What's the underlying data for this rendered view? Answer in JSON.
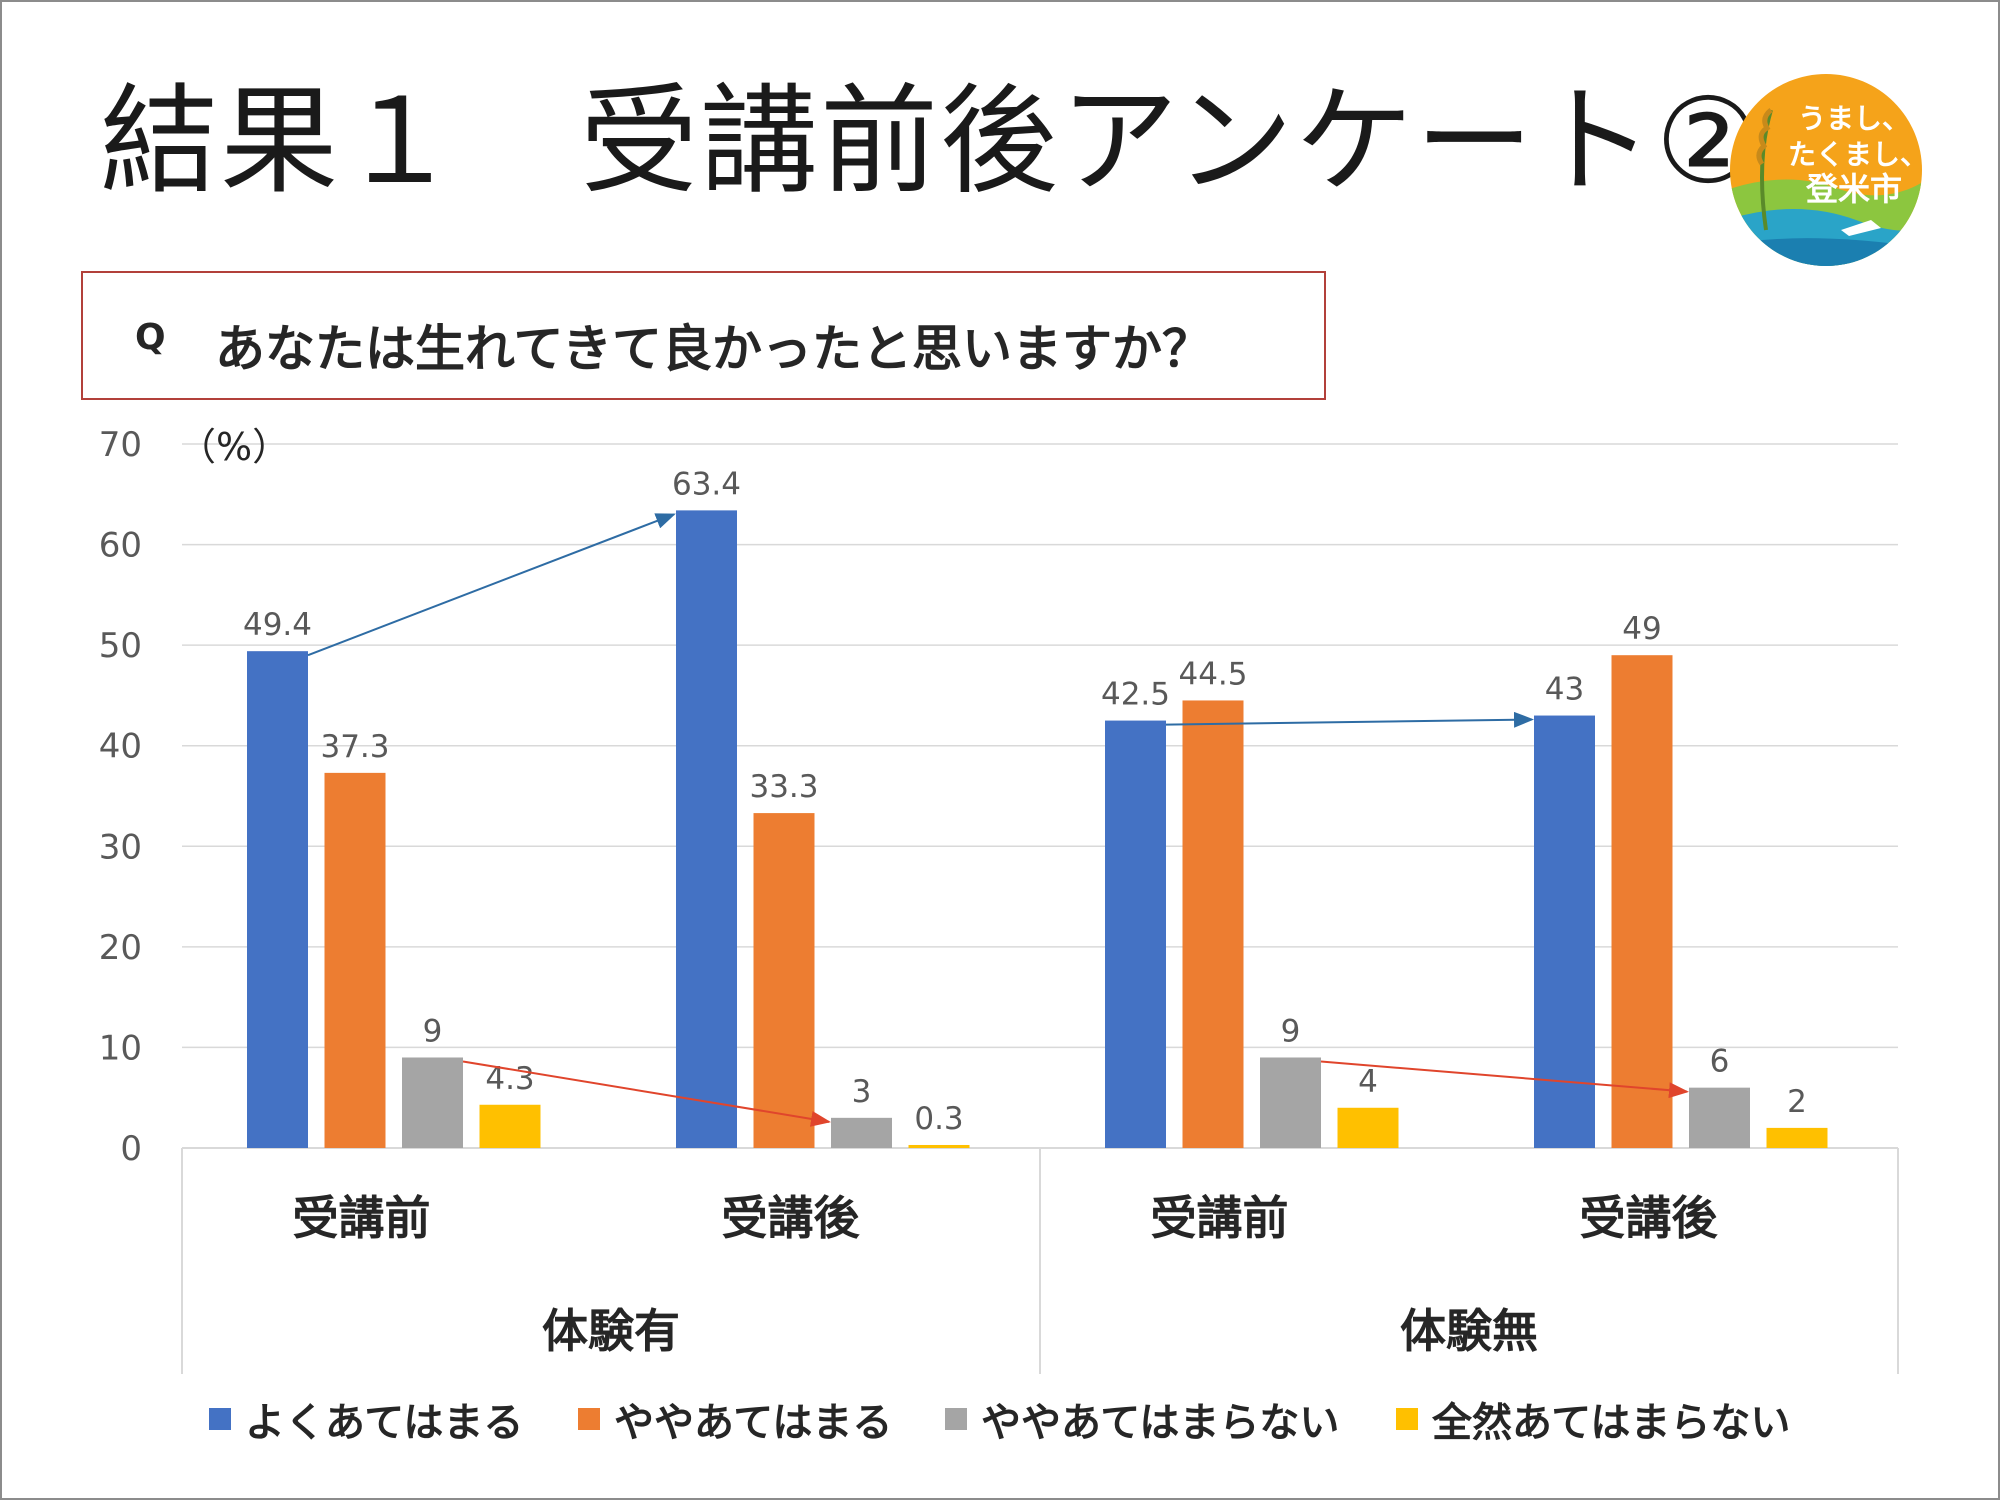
{
  "slide": {
    "title": "結果１　受講前後アンケート②",
    "question_prefix": "Q",
    "question": "あなたは生れてきて良かったと思いますか？",
    "logo_text": [
      "うまし、",
      "たくまし、",
      "登米市"
    ]
  },
  "colors": {
    "blue": "#4472c4",
    "orange": "#ed7d31",
    "gray": "#a5a5a5",
    "yellow": "#ffc000",
    "arrow_blue": "#2e6ca4",
    "arrow_red": "#e0452c",
    "border": "#b2403a"
  },
  "chart_data": {
    "type": "bar",
    "ylabel": "（%）",
    "ylim": [
      0,
      70
    ],
    "yticks": [
      0,
      10,
      20,
      30,
      40,
      50,
      60,
      70
    ],
    "grid": true,
    "groups": [
      "体験有",
      "体験無"
    ],
    "categories": [
      "受講前",
      "受講後",
      "受講前",
      "受講後"
    ],
    "category_group": [
      "体験有",
      "体験有",
      "体験無",
      "体験無"
    ],
    "series": [
      {
        "name": "よくあてはまる",
        "values": [
          49.4,
          63.4,
          42.5,
          43
        ],
        "labels": [
          "49.4",
          "63.4",
          "42.5",
          "43"
        ]
      },
      {
        "name": "ややあてはまる",
        "values": [
          37.3,
          33.3,
          44.5,
          49
        ],
        "labels": [
          "37.3",
          "33.3",
          "44.5",
          "49"
        ]
      },
      {
        "name": "ややあてはまらない",
        "values": [
          9,
          3,
          9,
          6
        ],
        "labels": [
          "9",
          "3",
          "9",
          "6"
        ]
      },
      {
        "name": "全然あてはまらない",
        "values": [
          4.3,
          0.3,
          4,
          2
        ],
        "labels": [
          "4.3",
          "0.3",
          "4",
          "2"
        ]
      }
    ],
    "legend_position": "bottom",
    "annotations": [
      {
        "type": "arrow",
        "color": "blue",
        "from": {
          "category": 0,
          "series": 0
        },
        "to": {
          "category": 1,
          "series": 0
        }
      },
      {
        "type": "arrow",
        "color": "red",
        "from": {
          "category": 0,
          "series": 2
        },
        "to": {
          "category": 1,
          "series": 2
        }
      },
      {
        "type": "arrow",
        "color": "blue",
        "from": {
          "category": 2,
          "series": 0
        },
        "to": {
          "category": 3,
          "series": 0
        }
      },
      {
        "type": "arrow",
        "color": "red",
        "from": {
          "category": 2,
          "series": 2
        },
        "to": {
          "category": 3,
          "series": 2
        }
      }
    ]
  }
}
